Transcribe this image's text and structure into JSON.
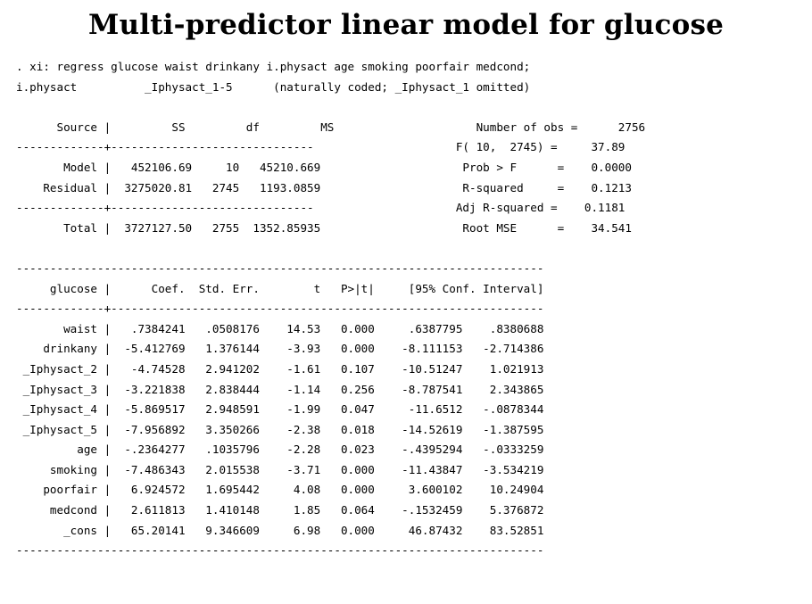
{
  "title": "Multi-predictor linear model for glucose",
  "command": ". xi: regress glucose waist drinkany i.physact age smoking poorfair medcond;",
  "xi_note": {
    "var": "i.physact",
    "dummies": "_Iphysact_1-5",
    "note": "(naturally coded; _Iphysact_1 omitted)"
  },
  "anova": {
    "headers": [
      "Source",
      "SS",
      "df",
      "MS"
    ],
    "rows": [
      {
        "source": "Model",
        "ss": "452106.69",
        "df": "10",
        "ms": "45210.669"
      },
      {
        "source": "Residual",
        "ss": "3275020.81",
        "df": "2745",
        "ms": "1193.0859"
      }
    ],
    "total": {
      "source": "Total",
      "ss": "3727127.50",
      "df": "2755",
      "ms": "1352.85935"
    }
  },
  "stats": [
    {
      "label": "Number of obs",
      "value": "2756"
    },
    {
      "label": "F( 10,  2745)",
      "value": "37.89"
    },
    {
      "label": "Prob > F",
      "value": "0.0000"
    },
    {
      "label": "R-squared",
      "value": "0.1213"
    },
    {
      "label": "Adj R-squared",
      "value": "0.1181"
    },
    {
      "label": "Root MSE",
      "value": "34.541"
    }
  ],
  "coef": {
    "headers": [
      "glucose",
      "Coef.",
      "Std. Err.",
      "t",
      "P>|t|",
      "[95% Conf. Interval]"
    ],
    "rows": [
      {
        "var": "waist",
        "coef": ".7384241",
        "se": ".0508176",
        "t": "14.53",
        "p": "0.000",
        "lo": ".6387795",
        "hi": ".8380688"
      },
      {
        "var": "drinkany",
        "coef": "-5.412769",
        "se": "1.376144",
        "t": "-3.93",
        "p": "0.000",
        "lo": "-8.111153",
        "hi": "-2.714386"
      },
      {
        "var": "_Iphysact_2",
        "coef": "-4.74528",
        "se": "2.941202",
        "t": "-1.61",
        "p": "0.107",
        "lo": "-10.51247",
        "hi": "1.021913"
      },
      {
        "var": "_Iphysact_3",
        "coef": "-3.221838",
        "se": "2.838444",
        "t": "-1.14",
        "p": "0.256",
        "lo": "-8.787541",
        "hi": "2.343865"
      },
      {
        "var": "_Iphysact_4",
        "coef": "-5.869517",
        "se": "2.948591",
        "t": "-1.99",
        "p": "0.047",
        "lo": "-11.6512",
        "hi": "-.0878344"
      },
      {
        "var": "_Iphysact_5",
        "coef": "-7.956892",
        "se": "3.350266",
        "t": "-2.38",
        "p": "0.018",
        "lo": "-14.52619",
        "hi": "-1.387595"
      },
      {
        "var": "age",
        "coef": "-.2364277",
        "se": ".1035796",
        "t": "-2.28",
        "p": "0.023",
        "lo": "-.4395294",
        "hi": "-.0333259"
      },
      {
        "var": "smoking",
        "coef": "-7.486343",
        "se": "2.015538",
        "t": "-3.71",
        "p": "0.000",
        "lo": "-11.43847",
        "hi": "-3.534219"
      },
      {
        "var": "poorfair",
        "coef": "6.924572",
        "se": "1.695442",
        "t": "4.08",
        "p": "0.000",
        "lo": "3.600102",
        "hi": "10.24904"
      },
      {
        "var": "medcond",
        "coef": "2.611813",
        "se": "1.410148",
        "t": "1.85",
        "p": "0.064",
        "lo": "-.1532459",
        "hi": "5.376872"
      },
      {
        "var": "_cons",
        "coef": "65.20141",
        "se": "9.346609",
        "t": "6.98",
        "p": "0.000",
        "lo": "46.87432",
        "hi": "83.52851"
      }
    ]
  }
}
